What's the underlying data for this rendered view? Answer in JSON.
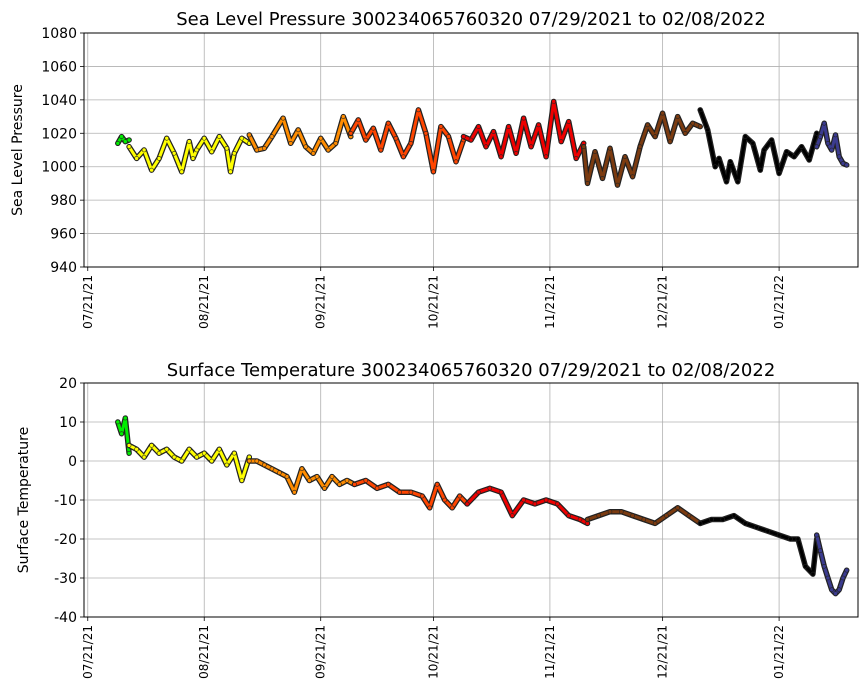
{
  "chart_data": [
    {
      "type": "scatter",
      "title": "Sea Level Pressure 300234065760320  07/29/2021 to 02/08/2022",
      "xlabel": "",
      "ylabel": "Sea Level Pressure",
      "x_ticks": [
        "07/21/21",
        "08/21/21",
        "09/21/21",
        "10/21/21",
        "11/21/21",
        "12/21/21",
        "01/21/22"
      ],
      "x_range": [
        "2021-07-20",
        "2022-02-11"
      ],
      "ylim": [
        940,
        1080
      ],
      "y_ticks": [
        940,
        960,
        980,
        1000,
        1020,
        1040,
        1060,
        1080
      ],
      "grid": true,
      "series": [
        {
          "color": "#00ee00",
          "x": [
            "2021-07-29",
            "2021-07-30",
            "2021-07-31",
            "2021-08-01"
          ],
          "y": [
            1014,
            1018,
            1015,
            1016
          ]
        },
        {
          "color": "#ffff00",
          "x": [
            "2021-08-01",
            "2021-08-03",
            "2021-08-05",
            "2021-08-07",
            "2021-08-09",
            "2021-08-11",
            "2021-08-13",
            "2021-08-15",
            "2021-08-17",
            "2021-08-18",
            "2021-08-19",
            "2021-08-21",
            "2021-08-23",
            "2021-08-25",
            "2021-08-27",
            "2021-08-28",
            "2021-08-29",
            "2021-08-31",
            "2021-09-02"
          ],
          "y": [
            1012,
            1005,
            1010,
            998,
            1005,
            1017,
            1008,
            997,
            1015,
            1005,
            1010,
            1017,
            1009,
            1018,
            1011,
            997,
            1008,
            1017,
            1014
          ]
        },
        {
          "color": "#ff8c00",
          "x": [
            "2021-09-02",
            "2021-09-04",
            "2021-09-06",
            "2021-09-08",
            "2021-09-11",
            "2021-09-13",
            "2021-09-15",
            "2021-09-17",
            "2021-09-19",
            "2021-09-21",
            "2021-09-23",
            "2021-09-25",
            "2021-09-27",
            "2021-09-29"
          ],
          "y": [
            1019,
            1010,
            1011,
            1018,
            1029,
            1014,
            1022,
            1012,
            1008,
            1017,
            1010,
            1014,
            1030,
            1018
          ]
        },
        {
          "color": "#ff4500",
          "x": [
            "2021-09-29",
            "2021-10-01",
            "2021-10-03",
            "2021-10-05",
            "2021-10-07",
            "2021-10-09",
            "2021-10-11",
            "2021-10-13",
            "2021-10-15",
            "2021-10-17",
            "2021-10-19",
            "2021-10-21",
            "2021-10-23",
            "2021-10-25",
            "2021-10-27",
            "2021-10-29"
          ],
          "y": [
            1020,
            1028,
            1016,
            1023,
            1010,
            1026,
            1017,
            1006,
            1014,
            1034,
            1020,
            997,
            1024,
            1018,
            1003,
            1016
          ]
        },
        {
          "color": "#ee0000",
          "x": [
            "2021-10-29",
            "2021-10-31",
            "2021-11-02",
            "2021-11-04",
            "2021-11-06",
            "2021-11-08",
            "2021-11-10",
            "2021-11-12",
            "2021-11-14",
            "2021-11-16",
            "2021-11-18",
            "2021-11-20",
            "2021-11-22",
            "2021-11-24",
            "2021-11-26",
            "2021-11-28",
            "2021-11-30"
          ],
          "y": [
            1018,
            1016,
            1024,
            1012,
            1021,
            1006,
            1024,
            1008,
            1029,
            1012,
            1025,
            1006,
            1039,
            1015,
            1027,
            1005,
            1014
          ]
        },
        {
          "color": "#7b3b10",
          "x": [
            "2021-11-30",
            "2021-12-01",
            "2021-12-03",
            "2021-12-05",
            "2021-12-07",
            "2021-12-09",
            "2021-12-11",
            "2021-12-13",
            "2021-12-15",
            "2021-12-17",
            "2021-12-19",
            "2021-12-21",
            "2021-12-23",
            "2021-12-25",
            "2021-12-27",
            "2021-12-29",
            "2021-12-31"
          ],
          "y": [
            1012,
            990,
            1009,
            993,
            1011,
            989,
            1006,
            994,
            1012,
            1025,
            1018,
            1032,
            1015,
            1030,
            1020,
            1026,
            1024
          ]
        },
        {
          "color": "#000000",
          "x": [
            "2021-12-31",
            "2022-01-02",
            "2022-01-04",
            "2022-01-05",
            "2022-01-07",
            "2022-01-08",
            "2022-01-10",
            "2022-01-12",
            "2022-01-14",
            "2022-01-16",
            "2022-01-17",
            "2022-01-19",
            "2022-01-21",
            "2022-01-23",
            "2022-01-25",
            "2022-01-27",
            "2022-01-29",
            "2022-01-31"
          ],
          "y": [
            1034,
            1022,
            1000,
            1005,
            991,
            1003,
            991,
            1018,
            1014,
            998,
            1010,
            1016,
            996,
            1009,
            1006,
            1012,
            1004,
            1020
          ]
        },
        {
          "color": "#3b3b8f",
          "x": [
            "2022-01-31",
            "2022-02-01",
            "2022-02-02",
            "2022-02-03",
            "2022-02-04",
            "2022-02-05",
            "2022-02-06",
            "2022-02-07",
            "2022-02-08"
          ],
          "y": [
            1012,
            1018,
            1026,
            1014,
            1010,
            1019,
            1006,
            1002,
            1001
          ]
        }
      ]
    },
    {
      "type": "scatter",
      "title": "Surface Temperature 300234065760320  07/29/2021 to 02/08/2022",
      "xlabel": "",
      "ylabel": "Surface Temperature",
      "x_ticks": [
        "07/21/21",
        "08/21/21",
        "09/21/21",
        "10/21/21",
        "11/21/21",
        "12/21/21",
        "01/21/22"
      ],
      "x_range": [
        "2021-07-20",
        "2022-02-11"
      ],
      "ylim": [
        -40,
        20
      ],
      "y_ticks": [
        -40,
        -30,
        -20,
        -10,
        0,
        10,
        20
      ],
      "grid": true,
      "series": [
        {
          "color": "#00ee00",
          "x": [
            "2021-07-29",
            "2021-07-30",
            "2021-07-31",
            "2021-08-01"
          ],
          "y": [
            10,
            7,
            11,
            2
          ]
        },
        {
          "color": "#ffff00",
          "x": [
            "2021-08-01",
            "2021-08-03",
            "2021-08-05",
            "2021-08-07",
            "2021-08-09",
            "2021-08-11",
            "2021-08-13",
            "2021-08-15",
            "2021-08-17",
            "2021-08-19",
            "2021-08-21",
            "2021-08-23",
            "2021-08-25",
            "2021-08-27",
            "2021-08-29",
            "2021-08-31",
            "2021-09-02"
          ],
          "y": [
            4,
            3,
            1,
            4,
            2,
            3,
            1,
            0,
            3,
            1,
            2,
            0,
            3,
            -1,
            2,
            -5,
            1
          ]
        },
        {
          "color": "#ff8c00",
          "x": [
            "2021-09-02",
            "2021-09-04",
            "2021-09-06",
            "2021-09-08",
            "2021-09-10",
            "2021-09-12",
            "2021-09-14",
            "2021-09-16",
            "2021-09-18",
            "2021-09-20",
            "2021-09-22",
            "2021-09-24",
            "2021-09-26",
            "2021-09-28",
            "2021-09-30"
          ],
          "y": [
            0,
            0,
            -1,
            -2,
            -3,
            -4,
            -8,
            -2,
            -5,
            -4,
            -7,
            -4,
            -6,
            -5,
            -6
          ]
        },
        {
          "color": "#ff4500",
          "x": [
            "2021-09-30",
            "2021-10-03",
            "2021-10-06",
            "2021-10-09",
            "2021-10-12",
            "2021-10-15",
            "2021-10-18",
            "2021-10-20",
            "2021-10-22",
            "2021-10-24",
            "2021-10-26",
            "2021-10-28",
            "2021-10-30"
          ],
          "y": [
            -6,
            -5,
            -7,
            -6,
            -8,
            -8,
            -9,
            -12,
            -6,
            -10,
            -12,
            -9,
            -11
          ]
        },
        {
          "color": "#ee0000",
          "x": [
            "2021-10-30",
            "2021-11-02",
            "2021-11-05",
            "2021-11-08",
            "2021-11-11",
            "2021-11-14",
            "2021-11-17",
            "2021-11-20",
            "2021-11-23",
            "2021-11-26",
            "2021-11-29",
            "2021-12-01"
          ],
          "y": [
            -11,
            -8,
            -7,
            -8,
            -14,
            -10,
            -11,
            -10,
            -11,
            -14,
            -15,
            -16
          ]
        },
        {
          "color": "#7b3b10",
          "x": [
            "2021-12-01",
            "2021-12-04",
            "2021-12-07",
            "2021-12-10",
            "2021-12-13",
            "2021-12-16",
            "2021-12-19",
            "2021-12-22",
            "2021-12-25",
            "2021-12-28",
            "2021-12-31"
          ],
          "y": [
            -15,
            -14,
            -13,
            -13,
            -14,
            -15,
            -16,
            -14,
            -12,
            -14,
            -16
          ]
        },
        {
          "color": "#000000",
          "x": [
            "2021-12-31",
            "2022-01-03",
            "2022-01-06",
            "2022-01-09",
            "2022-01-12",
            "2022-01-15",
            "2022-01-18",
            "2022-01-21",
            "2022-01-24",
            "2022-01-26",
            "2022-01-28",
            "2022-01-30",
            "2022-01-31"
          ],
          "y": [
            -16,
            -15,
            -15,
            -14,
            -16,
            -17,
            -18,
            -19,
            -20,
            -20,
            -27,
            -29,
            -20
          ]
        },
        {
          "color": "#3b3b8f",
          "x": [
            "2022-01-31",
            "2022-02-01",
            "2022-02-02",
            "2022-02-03",
            "2022-02-04",
            "2022-02-05",
            "2022-02-06",
            "2022-02-07",
            "2022-02-08"
          ],
          "y": [
            -19,
            -23,
            -27,
            -30,
            -33,
            -34,
            -33,
            -30,
            -28
          ]
        }
      ]
    }
  ]
}
